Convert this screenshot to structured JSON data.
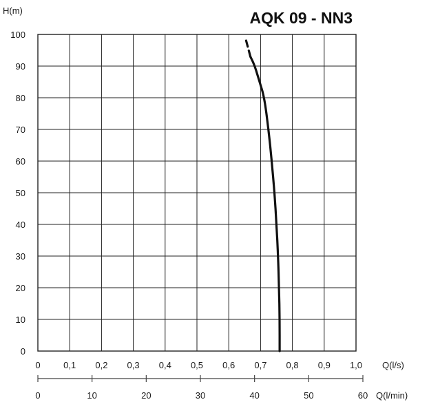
{
  "chart_data": {
    "type": "line",
    "title": "AQK 09 - NN3",
    "ylabel": "H(m)",
    "xlabel": "Q(l/s)",
    "xlabel2": "Q(l/min)",
    "ylim": [
      0,
      100
    ],
    "xlim": [
      0,
      1.0
    ],
    "xlim2": [
      0,
      60
    ],
    "grid": true,
    "y_ticks": [
      "0",
      "10",
      "20",
      "30",
      "40",
      "50",
      "60",
      "70",
      "80",
      "90",
      "100"
    ],
    "x_ticks": [
      "0",
      "0,1",
      "0,2",
      "0,3",
      "0,4",
      "0,5",
      "0,6",
      "0,7",
      "0,8",
      "0,9",
      "1,0"
    ],
    "x2_ticks": [
      "0",
      "10",
      "20",
      "30",
      "40",
      "50",
      "60"
    ],
    "series": [
      {
        "x": [
          0.76,
          0.76,
          0.758,
          0.755,
          0.75,
          0.744,
          0.735,
          0.725,
          0.712,
          0.697,
          0.682,
          0.668
        ],
        "y": [
          0,
          10,
          20,
          30,
          40,
          50,
          60,
          70,
          80,
          85,
          90,
          93
        ],
        "color": "#111111",
        "style": "solid"
      },
      {
        "x": [
          0.668,
          0.66,
          0.652
        ],
        "y": [
          93,
          96,
          99
        ],
        "color": "#111111",
        "style": "dashed"
      }
    ]
  }
}
